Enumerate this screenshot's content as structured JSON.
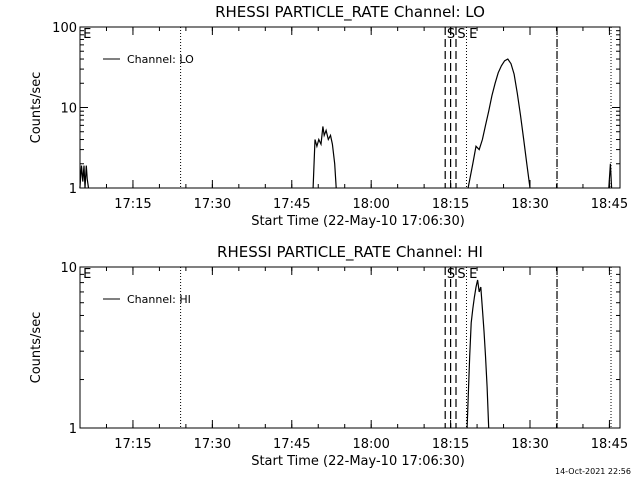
{
  "footer": {
    "timestamp": "14-Oct-2021 22:56"
  },
  "chart_data": [
    {
      "type": "line",
      "title": "RHESSI PARTICLE_RATE Channel: LO",
      "xlabel": "Start Time (22-May-10 17:06:30)",
      "ylabel": "Counts/sec",
      "yscale": "log",
      "xlim": [
        17.0833,
        18.7833
      ],
      "ylim": [
        1,
        100
      ],
      "xticks": [
        17.25,
        17.5,
        17.75,
        18.0,
        18.25,
        18.5,
        18.75
      ],
      "xtick_labels": [
        "17:15",
        "17:30",
        "17:45",
        "18:00",
        "18:15",
        "18:30",
        "18:45"
      ],
      "yticks": [
        1,
        10,
        100
      ],
      "ytick_labels": [
        "1",
        "10",
        "100"
      ],
      "legend": {
        "position": "top-left",
        "entries": [
          "Channel: LO"
        ]
      },
      "dotted_lines": [
        17.4,
        18.3,
        18.585,
        18.755
      ],
      "dashed_lines": [
        18.233,
        18.25,
        18.267,
        18.585
      ],
      "markers": [
        {
          "text": "E",
          "x": 17.09
        },
        {
          "text": "S",
          "x": 18.235
        },
        {
          "text": "S",
          "x": 18.268
        },
        {
          "text": "E",
          "x": 18.305
        }
      ],
      "series": [
        {
          "segments": [
            [
              [
                17.083,
                1
              ],
              [
                17.088,
                1.9
              ],
              [
                17.092,
                1.2
              ],
              [
                17.096,
                1.9
              ],
              [
                17.099,
                1
              ],
              [
                17.103,
                1.9
              ],
              [
                17.106,
                1.3
              ],
              [
                17.11,
                1
              ]
            ],
            [
              [
                17.817,
                1
              ],
              [
                17.823,
                4
              ],
              [
                17.829,
                3.3
              ],
              [
                17.835,
                4
              ],
              [
                17.842,
                3.5
              ],
              [
                17.848,
                5.8
              ],
              [
                17.852,
                4.5
              ],
              [
                17.858,
                5.2
              ],
              [
                17.865,
                4
              ],
              [
                17.872,
                4.5
              ],
              [
                17.878,
                3.5
              ],
              [
                17.885,
                2
              ],
              [
                17.89,
                1
              ]
            ],
            [
              [
                18.305,
                1
              ],
              [
                18.32,
                2
              ],
              [
                18.33,
                3.3
              ],
              [
                18.34,
                3
              ],
              [
                18.35,
                4
              ],
              [
                18.36,
                6
              ],
              [
                18.37,
                9
              ],
              [
                18.38,
                14
              ],
              [
                18.39,
                20
              ],
              [
                18.4,
                27
              ],
              [
                18.41,
                33
              ],
              [
                18.42,
                38
              ],
              [
                18.43,
                40
              ],
              [
                18.44,
                35
              ],
              [
                18.45,
                26
              ],
              [
                18.46,
                15
              ],
              [
                18.47,
                8
              ],
              [
                18.48,
                4
              ],
              [
                18.49,
                2
              ],
              [
                18.5,
                1
              ]
            ],
            [
              [
                18.748,
                1
              ],
              [
                18.753,
                2
              ],
              [
                18.757,
                1
              ]
            ]
          ]
        }
      ]
    },
    {
      "type": "line",
      "title": "RHESSI PARTICLE_RATE Channel: HI",
      "xlabel": "Start Time (22-May-10 17:06:30)",
      "ylabel": "Counts/sec",
      "yscale": "log",
      "xlim": [
        17.0833,
        18.7833
      ],
      "ylim": [
        1,
        10
      ],
      "xticks": [
        17.25,
        17.5,
        17.75,
        18.0,
        18.25,
        18.5,
        18.75
      ],
      "xtick_labels": [
        "17:15",
        "17:30",
        "17:45",
        "18:00",
        "18:15",
        "18:30",
        "18:45"
      ],
      "yticks": [
        1,
        10
      ],
      "ytick_labels": [
        "1",
        "10"
      ],
      "legend": {
        "position": "top-left",
        "entries": [
          "Channel: HI"
        ]
      },
      "dotted_lines": [
        17.4,
        18.3,
        18.585,
        18.755
      ],
      "dashed_lines": [
        18.233,
        18.25,
        18.267,
        18.585
      ],
      "markers": [
        {
          "text": "E",
          "x": 17.09
        },
        {
          "text": "S",
          "x": 18.235
        },
        {
          "text": "S",
          "x": 18.268
        },
        {
          "text": "E",
          "x": 18.305
        }
      ],
      "series": [
        {
          "segments": [
            [
              [
                18.302,
                1
              ],
              [
                18.31,
                2.8
              ],
              [
                18.315,
                4.5
              ],
              [
                18.32,
                5.5
              ],
              [
                18.325,
                6.5
              ],
              [
                18.33,
                7.5
              ],
              [
                18.335,
                8.3
              ],
              [
                18.34,
                7
              ],
              [
                18.345,
                7.5
              ],
              [
                18.35,
                5.5
              ],
              [
                18.355,
                4
              ],
              [
                18.36,
                2.8
              ],
              [
                18.365,
                1.8
              ],
              [
                18.37,
                1
              ]
            ]
          ]
        }
      ]
    }
  ]
}
